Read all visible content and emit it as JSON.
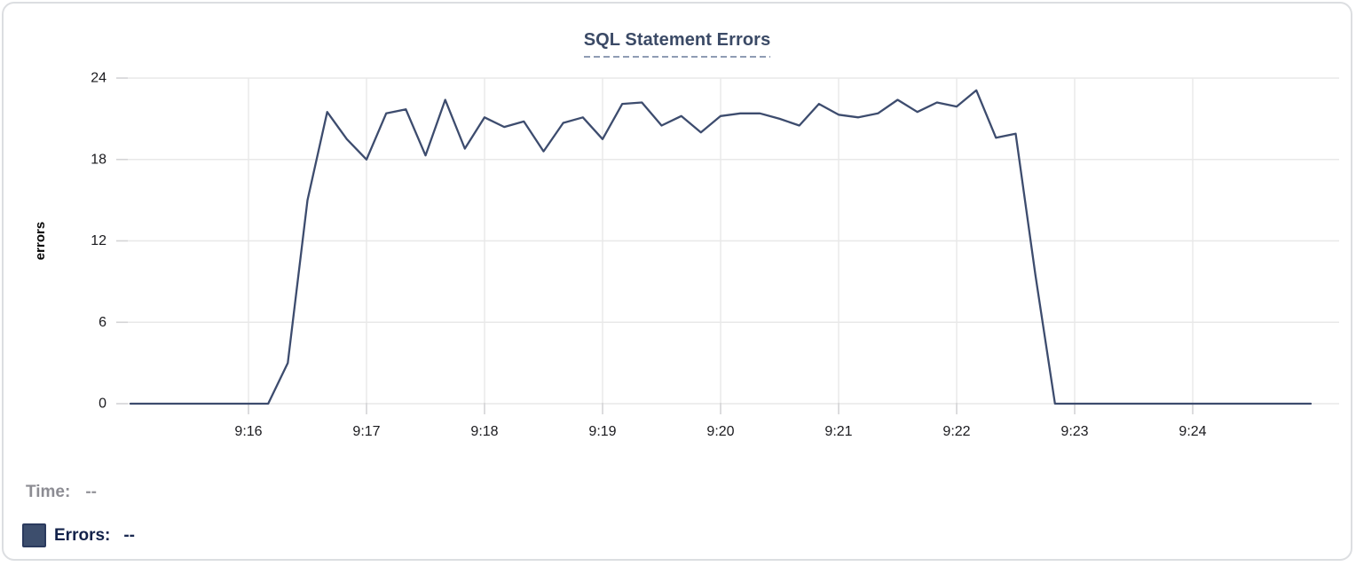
{
  "chart_data": {
    "type": "line",
    "title": "SQL Statement Errors",
    "xlabel": "",
    "ylabel": "errors",
    "ylim": [
      0,
      24
    ],
    "y_ticks": [
      0,
      6,
      12,
      18,
      24
    ],
    "x_tick_labels": [
      "9:16",
      "9:17",
      "9:18",
      "9:19",
      "9:20",
      "9:21",
      "9:22",
      "9:23",
      "9:24"
    ],
    "x_range": [
      "9:15:00",
      "9:25:00"
    ],
    "sample_interval_seconds": 10,
    "grid": true,
    "legend_position": "bottom-left",
    "series": [
      {
        "name": "Errors",
        "color": "#3d4c6e",
        "x": [
          "9:15:00",
          "9:15:10",
          "9:15:20",
          "9:15:30",
          "9:15:40",
          "9:15:50",
          "9:16:00",
          "9:16:10",
          "9:16:20",
          "9:16:30",
          "9:16:40",
          "9:16:50",
          "9:17:00",
          "9:17:10",
          "9:17:20",
          "9:17:30",
          "9:17:40",
          "9:17:50",
          "9:18:00",
          "9:18:10",
          "9:18:20",
          "9:18:30",
          "9:18:40",
          "9:18:50",
          "9:19:00",
          "9:19:10",
          "9:19:20",
          "9:19:30",
          "9:19:40",
          "9:19:50",
          "9:20:00",
          "9:20:10",
          "9:20:20",
          "9:20:30",
          "9:20:40",
          "9:20:50",
          "9:21:00",
          "9:21:10",
          "9:21:20",
          "9:21:30",
          "9:21:40",
          "9:21:50",
          "9:22:00",
          "9:22:10",
          "9:22:20",
          "9:22:30",
          "9:22:40",
          "9:22:50",
          "9:23:00",
          "9:23:10",
          "9:23:20",
          "9:23:30",
          "9:23:40",
          "9:23:50",
          "9:24:00",
          "9:24:10",
          "9:24:20",
          "9:24:30",
          "9:24:40",
          "9:24:50",
          "9:25:00"
        ],
        "values": [
          0,
          0,
          0,
          0,
          0,
          0,
          0,
          0,
          3,
          15,
          21.5,
          19.5,
          18,
          21.4,
          21.7,
          18.3,
          22.4,
          18.8,
          21.1,
          20.4,
          20.8,
          18.6,
          20.7,
          21.1,
          19.5,
          22.1,
          22.2,
          20.5,
          21.2,
          20.0,
          21.2,
          21.4,
          21.4,
          21.0,
          20.5,
          22.1,
          21.3,
          21.1,
          21.4,
          22.4,
          21.5,
          22.2,
          21.9,
          23.1,
          19.6,
          19.9,
          9.5,
          0,
          0,
          0,
          0,
          0,
          0,
          0,
          0,
          0,
          0,
          0,
          0,
          0,
          0
        ]
      }
    ]
  },
  "hover_info": {
    "time_label": "Time:",
    "time_value": "--",
    "errors_label": "Errors:",
    "errors_value": "--",
    "errors_swatch_color": "#3d4e6d"
  },
  "colors": {
    "line": "#3d4c6e",
    "title": "#3b4a66",
    "title_underline": "#8f9cb4",
    "gridline": "#e8e8e8",
    "tick": "#d4d4d6",
    "axis_label": "#1a1a1e",
    "card_border": "#dcdee1"
  }
}
